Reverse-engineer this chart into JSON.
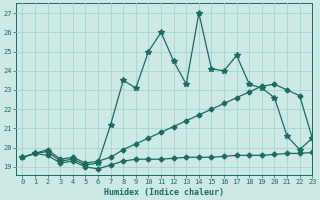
{
  "xlabel": "Humidex (Indice chaleur)",
  "xlim": [
    -0.5,
    23
  ],
  "ylim": [
    18.6,
    27.5
  ],
  "yticks": [
    19,
    20,
    21,
    22,
    23,
    24,
    25,
    26,
    27
  ],
  "xticks": [
    0,
    1,
    2,
    3,
    4,
    5,
    6,
    7,
    8,
    9,
    10,
    11,
    12,
    13,
    14,
    15,
    16,
    17,
    18,
    19,
    20,
    21,
    22,
    23
  ],
  "background_color": "#cce9e5",
  "grid_color": "#a8d5cf",
  "line_color": "#1a6b60",
  "line1_x": [
    0,
    1,
    2,
    3,
    4,
    5,
    6,
    7,
    8,
    9,
    10,
    11,
    12,
    13,
    14,
    15,
    16,
    17,
    18,
    19,
    20,
    21,
    22,
    23
  ],
  "line1_y": [
    19.5,
    19.7,
    19.6,
    19.2,
    19.3,
    19.0,
    18.9,
    19.1,
    19.3,
    19.4,
    19.4,
    19.4,
    19.45,
    19.5,
    19.5,
    19.5,
    19.55,
    19.6,
    19.6,
    19.6,
    19.65,
    19.7,
    19.7,
    19.75
  ],
  "line2_x": [
    0,
    1,
    2,
    3,
    4,
    5,
    6,
    7,
    8,
    9,
    10,
    11,
    12,
    13,
    14,
    15,
    16,
    17,
    18,
    19,
    20,
    21,
    22,
    23
  ],
  "line2_y": [
    19.5,
    19.7,
    19.8,
    19.3,
    19.4,
    19.1,
    19.2,
    21.2,
    23.5,
    23.1,
    25.0,
    26.0,
    24.5,
    23.3,
    27.0,
    24.1,
    24.0,
    24.8,
    23.3,
    23.1,
    22.6,
    20.6,
    19.9,
    20.5
  ],
  "line3_x": [
    0,
    1,
    2,
    3,
    4,
    5,
    6,
    7,
    8,
    9,
    10,
    11,
    12,
    13,
    14,
    15,
    16,
    17,
    18,
    19,
    20,
    21,
    22,
    23
  ],
  "line3_y": [
    19.5,
    19.7,
    19.9,
    19.4,
    19.5,
    19.2,
    19.3,
    19.5,
    19.9,
    20.2,
    20.5,
    20.8,
    21.1,
    21.4,
    21.7,
    22.0,
    22.3,
    22.6,
    22.9,
    23.2,
    23.3,
    23.0,
    22.7,
    20.5
  ],
  "linewidth": 0.9,
  "markersize_star": 4,
  "markersize_diamond": 2.5
}
